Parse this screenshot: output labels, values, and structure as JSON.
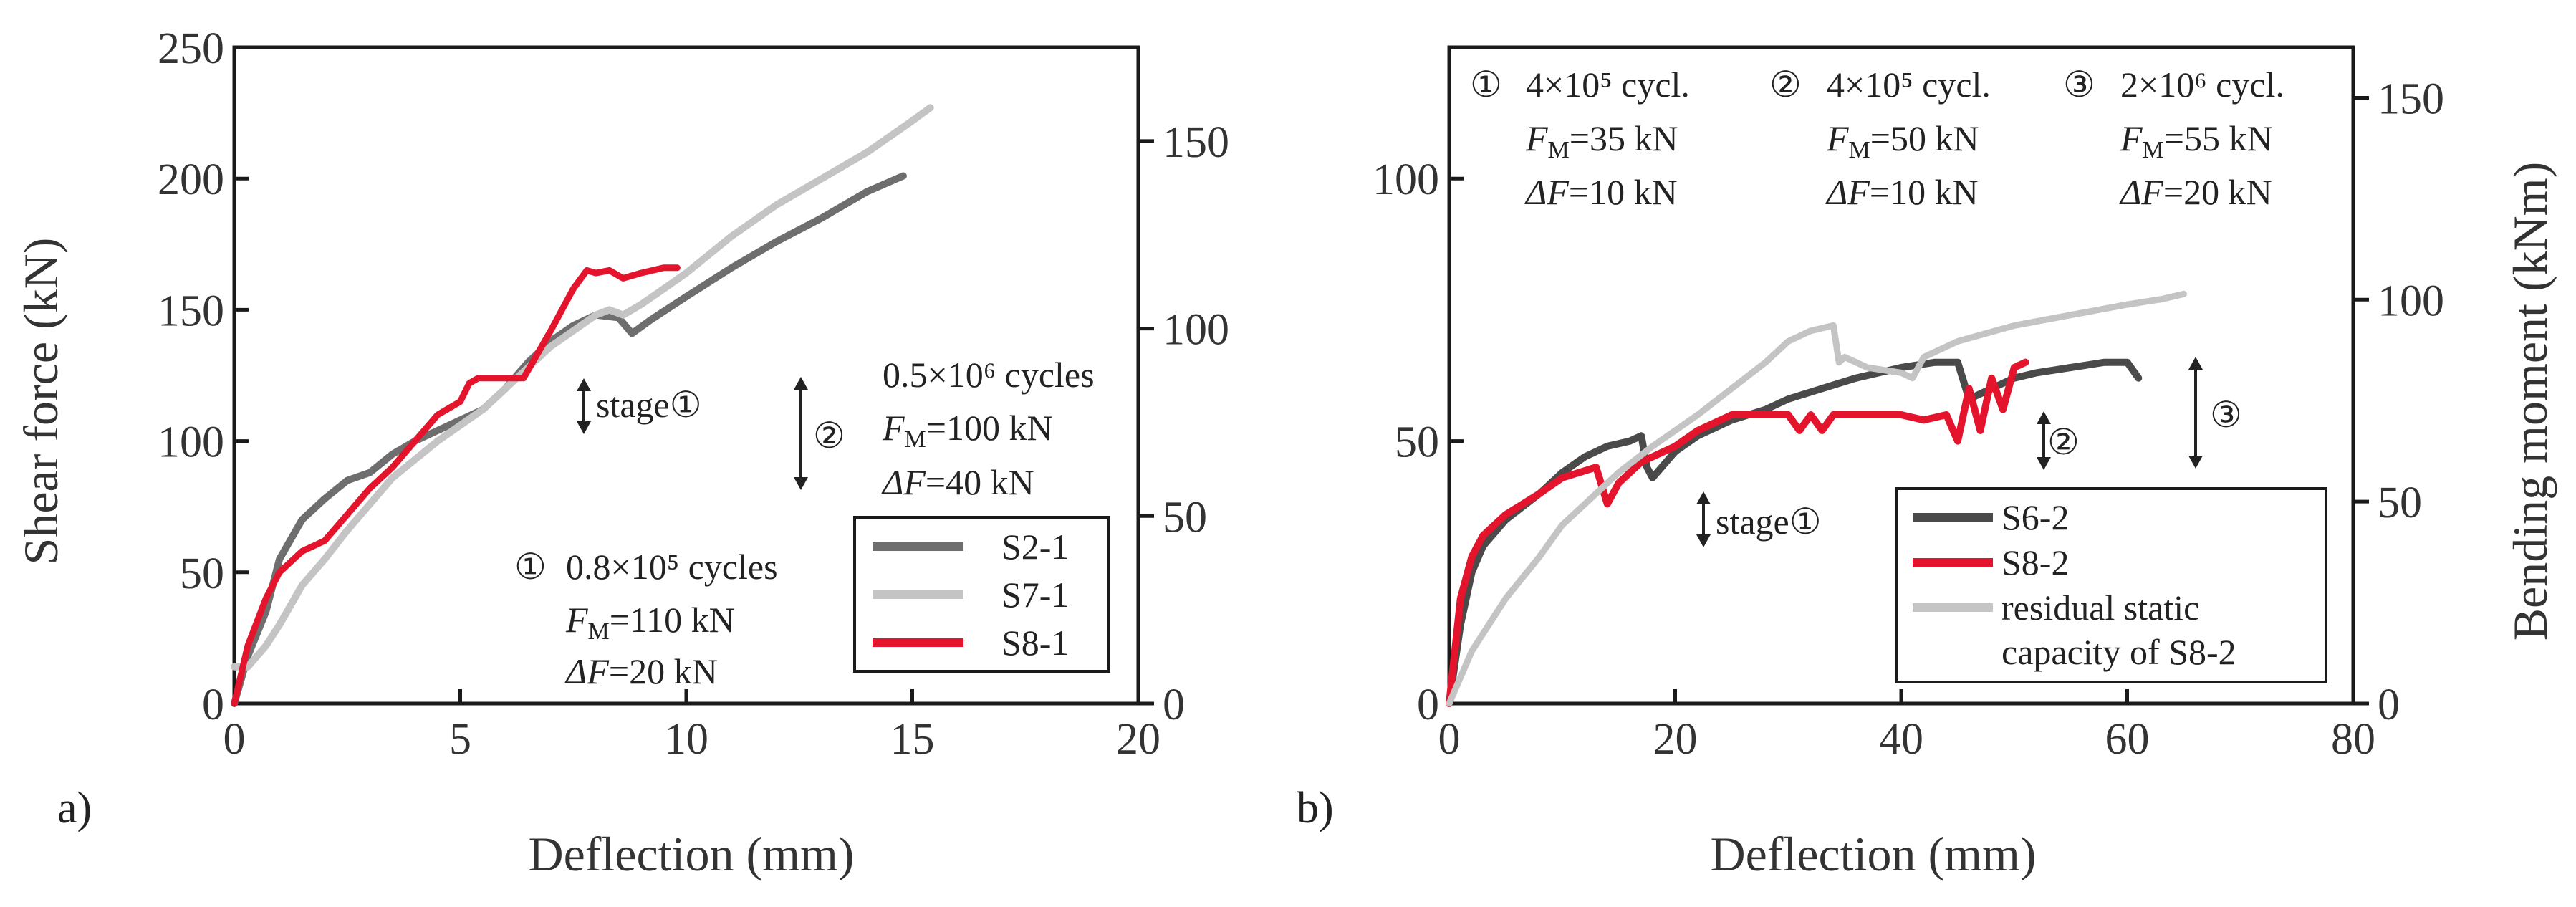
{
  "chart_data": [
    {
      "panel": "a)",
      "type": "line",
      "xlabel": "Deflection (mm)",
      "ylabel": "Shear force (kN)",
      "xlim": [
        0,
        20
      ],
      "ylim": [
        0,
        250
      ],
      "xticks": [
        0,
        5,
        10,
        15,
        20
      ],
      "yticks": [
        0,
        50,
        100,
        150,
        200,
        250
      ],
      "y2label": "",
      "y2lim": [
        0,
        175
      ],
      "y2ticks": [
        0,
        50,
        100,
        150
      ],
      "series": [
        {
          "name": "S2-1",
          "color": "#6e6e6e",
          "x": [
            0,
            0.3,
            0.7,
            1.0,
            1.5,
            2.0,
            2.5,
            3.0,
            3.5,
            4.0,
            4.5,
            5.0,
            5.5,
            6.0,
            6.5,
            7.0,
            7.5,
            8.0,
            8.5,
            8.8,
            9.2,
            10,
            11,
            12,
            13,
            14,
            14.8
          ],
          "y": [
            0,
            18,
            35,
            55,
            70,
            78,
            85,
            88,
            95,
            100,
            104,
            108,
            112,
            120,
            130,
            138,
            144,
            148,
            147,
            141,
            146,
            155,
            166,
            176,
            185,
            195,
            201
          ]
        },
        {
          "name": "S7-1",
          "color": "#c4c4c4",
          "x": [
            0,
            0.3,
            0.7,
            1.0,
            1.5,
            2.0,
            2.5,
            3.0,
            3.5,
            4.0,
            4.5,
            5.0,
            5.5,
            6.0,
            6.5,
            7.0,
            7.5,
            8.0,
            8.3,
            8.6,
            9.0,
            10,
            11,
            12,
            13,
            14,
            15,
            15.4
          ],
          "y": [
            14,
            14,
            22,
            30,
            45,
            55,
            66,
            76,
            86,
            93,
            100,
            106,
            112,
            120,
            128,
            136,
            142,
            148,
            150,
            148,
            152,
            164,
            178,
            190,
            200,
            210,
            222,
            227
          ]
        },
        {
          "name": "S8-1",
          "color": "#e4142c",
          "x": [
            0,
            0.3,
            0.7,
            1.0,
            1.5,
            2.0,
            2.5,
            3.0,
            3.5,
            4.0,
            4.5,
            5.0,
            5.2,
            5.4,
            5.6,
            5.8,
            6.0,
            6.2,
            6.4,
            6.6,
            7.0,
            7.5,
            7.8,
            8.0,
            8.3,
            8.6,
            9.0,
            9.5,
            9.8
          ],
          "y": [
            0,
            22,
            40,
            50,
            58,
            62,
            72,
            82,
            90,
            100,
            110,
            115,
            122,
            124,
            124,
            124,
            124,
            124,
            124,
            130,
            142,
            158,
            165,
            164,
            165,
            162,
            164,
            166,
            166
          ]
        }
      ],
      "annotations": {
        "stage_arrow": "stage①",
        "phase2": {
          "marker": "②",
          "cycles": "0.5×10⁶ cycles",
          "fm_sym": "F",
          "fm_sub": "M",
          "fm_val": "=100 kN",
          "df_sym": "ΔF",
          "df_val": "=40 kN"
        },
        "phase1": {
          "marker": "①",
          "cycles": "0.8×10⁵ cycles",
          "fm_sym": "F",
          "fm_sub": "M",
          "fm_val": "=110 kN",
          "df_sym": "ΔF",
          "df_val": "=20 kN"
        }
      }
    },
    {
      "panel": "b)",
      "type": "line",
      "xlabel": "Deflection (mm)",
      "ylabel": "",
      "xlim": [
        0,
        80
      ],
      "ylim": [
        0,
        125
      ],
      "xticks": [
        0,
        20,
        40,
        60,
        80
      ],
      "yticks": [
        0,
        50,
        100
      ],
      "y2label": "Bending moment (kNm)",
      "y2lim": [
        0,
        162.5
      ],
      "y2ticks": [
        0,
        50,
        100,
        150
      ],
      "series": [
        {
          "name": "S6-2",
          "color": "#4a4a4a",
          "x": [
            0,
            1,
            2,
            3,
            5,
            8,
            10,
            12,
            14,
            16,
            17,
            17.5,
            18,
            20,
            22,
            25,
            28,
            30,
            33,
            36,
            40,
            43,
            45,
            46,
            48,
            50,
            52,
            55,
            58,
            60,
            61
          ],
          "y": [
            0,
            15,
            25,
            30,
            35,
            40,
            44,
            47,
            49,
            50,
            51,
            45,
            43,
            48,
            51,
            54,
            56,
            58,
            60,
            62,
            64,
            65,
            65,
            58,
            60,
            62,
            63,
            64,
            65,
            65,
            62
          ]
        },
        {
          "name": "S8-2",
          "color": "#e4142c",
          "x": [
            0,
            1,
            2,
            3,
            5,
            8,
            10,
            13,
            14,
            15,
            17,
            20,
            22,
            25,
            28,
            30,
            31,
            32,
            33,
            34,
            35,
            38,
            40,
            42,
            44,
            45,
            46,
            47,
            48,
            49,
            50,
            51
          ],
          "y": [
            0,
            20,
            28,
            32,
            36,
            40,
            43,
            45,
            38,
            42,
            46,
            49,
            52,
            55,
            55,
            55,
            52,
            55,
            52,
            55,
            55,
            55,
            55,
            54,
            55,
            50,
            60,
            52,
            62,
            56,
            64,
            65
          ]
        },
        {
          "name": "residual static capacity of S8-2",
          "color": "#c4c4c4",
          "x": [
            0,
            2,
            5,
            8,
            10,
            13,
            15,
            18,
            20,
            22,
            25,
            28,
            30,
            32,
            34,
            34.5,
            35,
            37,
            40,
            41,
            42,
            45,
            50,
            55,
            60,
            63,
            65
          ],
          "y": [
            0,
            10,
            20,
            28,
            34,
            40,
            44,
            49,
            52,
            55,
            60,
            65,
            69,
            71,
            72,
            65,
            66,
            64,
            63,
            62,
            66,
            69,
            72,
            74,
            76,
            77,
            78
          ]
        }
      ],
      "annotations": {
        "phases": [
          {
            "marker": "①",
            "cycles": "4×10⁵ cycl.",
            "fm_sym": "F",
            "fm_sub": "M",
            "fm_val": "=35 kN",
            "df_sym": "ΔF",
            "df_val": "=10 kN"
          },
          {
            "marker": "②",
            "cycles": "4×10⁵ cycl.",
            "fm_sym": "F",
            "fm_sub": "M",
            "fm_val": "=50 kN",
            "df_sym": "ΔF",
            "df_val": "=10 kN"
          },
          {
            "marker": "③",
            "cycles": "2×10⁶ cycl.",
            "fm_sym": "F",
            "fm_sub": "M",
            "fm_val": "=55 kN",
            "df_sym": "ΔF",
            "df_val": "=20 kN"
          }
        ],
        "stage_arrow": "stage①",
        "marker2": "②",
        "marker3": "③"
      }
    }
  ]
}
